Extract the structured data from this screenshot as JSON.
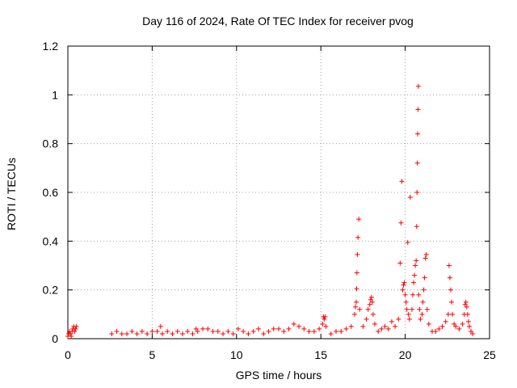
{
  "chart_data": {
    "type": "scatter",
    "title": "Day 116 of 2024, Rate Of TEC Index for receiver pvog",
    "xlabel": "GPS time / hours",
    "ylabel": "ROTI / TECUs",
    "xlim": [
      0,
      25
    ],
    "ylim": [
      0,
      1.2
    ],
    "x_ticks": [
      0,
      5,
      10,
      15,
      20,
      25
    ],
    "x_tick_labels": [
      "0",
      "5",
      "10",
      "15",
      "20",
      "25"
    ],
    "y_ticks": [
      0,
      0.2,
      0.4,
      0.6,
      0.8,
      1.0,
      1.2
    ],
    "y_tick_labels": [
      "0",
      "0.2",
      "0.4",
      "0.6",
      "0.8",
      "1",
      "1.2"
    ],
    "grid": true,
    "marker": "+",
    "marker_color": "#ff0000",
    "series": [
      {
        "x": [
          0.0,
          0.05,
          0.1,
          0.15,
          0.2,
          0.25,
          0.3,
          0.35,
          0.4,
          0.45,
          0.5,
          2.6,
          2.9,
          3.2,
          3.5,
          3.8,
          4.1,
          4.4,
          4.7,
          5.0,
          5.3,
          5.5,
          5.6,
          5.9,
          6.2,
          6.5,
          6.8,
          7.1,
          7.4,
          7.6,
          7.7,
          8.0,
          8.3,
          8.6,
          8.9,
          9.2,
          9.5,
          9.8,
          10.1,
          10.4,
          10.7,
          11.0,
          11.3,
          11.6,
          11.9,
          12.2,
          12.5,
          12.8,
          13.1,
          13.4,
          13.7,
          14.0,
          14.3,
          14.6,
          14.9,
          15.1,
          15.15,
          15.2,
          15.25,
          15.3,
          15.6,
          15.9,
          16.2,
          16.5,
          16.8,
          17.0,
          17.05,
          17.1,
          17.12,
          17.14,
          17.16,
          17.2,
          17.25,
          17.3,
          17.5,
          17.7,
          17.8,
          17.9,
          17.95,
          18.0,
          18.05,
          18.1,
          18.2,
          18.4,
          18.6,
          18.8,
          19.0,
          19.2,
          19.4,
          19.6,
          19.7,
          19.75,
          19.8,
          19.85,
          19.9,
          19.95,
          20.0,
          20.05,
          20.1,
          20.15,
          20.2,
          20.25,
          20.3,
          20.4,
          20.45,
          20.5,
          20.55,
          20.6,
          20.65,
          20.68,
          20.7,
          20.72,
          20.74,
          20.76,
          20.78,
          20.8,
          20.85,
          20.9,
          21.0,
          21.05,
          21.1,
          21.15,
          21.2,
          21.25,
          21.3,
          21.4,
          21.6,
          21.8,
          22.0,
          22.2,
          22.4,
          22.55,
          22.6,
          22.65,
          22.7,
          22.75,
          22.8,
          22.9,
          23.0,
          23.2,
          23.4,
          23.5,
          23.55,
          23.6,
          23.65,
          23.7,
          23.75,
          23.8,
          23.9,
          24.0
        ],
        "y": [
          0.01,
          0.02,
          0.03,
          0.02,
          0.01,
          0.03,
          0.04,
          0.05,
          0.03,
          0.04,
          0.05,
          0.02,
          0.03,
          0.02,
          0.02,
          0.03,
          0.02,
          0.03,
          0.02,
          0.03,
          0.03,
          0.05,
          0.02,
          0.03,
          0.02,
          0.03,
          0.02,
          0.03,
          0.02,
          0.04,
          0.03,
          0.04,
          0.04,
          0.03,
          0.03,
          0.02,
          0.03,
          0.02,
          0.04,
          0.03,
          0.02,
          0.03,
          0.04,
          0.02,
          0.03,
          0.04,
          0.04,
          0.03,
          0.04,
          0.06,
          0.05,
          0.04,
          0.03,
          0.03,
          0.04,
          0.06,
          0.09,
          0.08,
          0.09,
          0.05,
          0.02,
          0.03,
          0.03,
          0.04,
          0.05,
          0.1,
          0.13,
          0.15,
          0.205,
          0.27,
          0.345,
          0.415,
          0.49,
          0.12,
          0.05,
          0.08,
          0.12,
          0.14,
          0.16,
          0.17,
          0.15,
          0.1,
          0.06,
          0.03,
          0.04,
          0.05,
          0.04,
          0.07,
          0.05,
          0.08,
          0.31,
          0.475,
          0.645,
          0.2,
          0.22,
          0.23,
          0.18,
          0.15,
          0.12,
          0.395,
          0.1,
          0.08,
          0.58,
          0.12,
          0.18,
          0.23,
          0.26,
          0.3,
          0.32,
          0.46,
          0.6,
          0.72,
          0.84,
          0.94,
          1.035,
          0.18,
          0.12,
          0.08,
          0.1,
          0.15,
          0.2,
          0.25,
          0.33,
          0.345,
          0.12,
          0.06,
          0.03,
          0.03,
          0.04,
          0.05,
          0.07,
          0.1,
          0.3,
          0.25,
          0.2,
          0.15,
          0.1,
          0.06,
          0.05,
          0.04,
          0.06,
          0.1,
          0.14,
          0.15,
          0.13,
          0.1,
          0.07,
          0.05,
          0.03,
          0.02
        ]
      }
    ]
  }
}
